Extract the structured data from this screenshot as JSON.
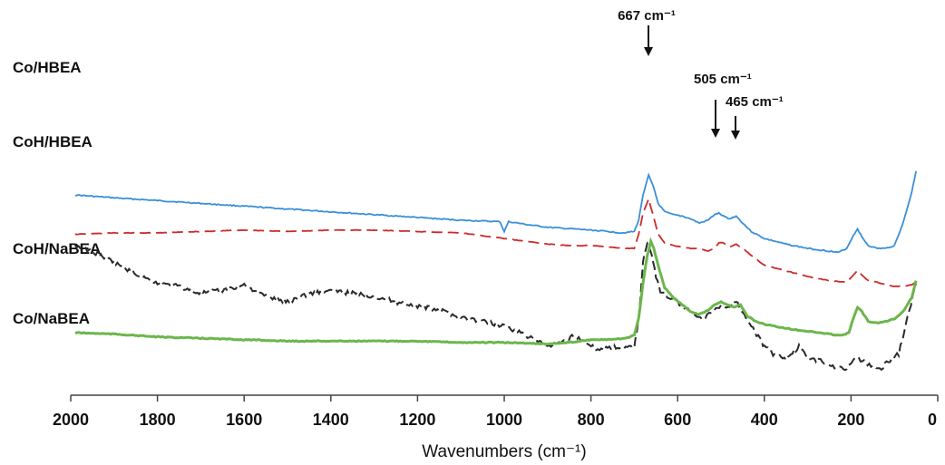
{
  "chart_data": {
    "type": "line",
    "title": "",
    "xlabel": "Wavenumbers (cm⁻¹)",
    "ylabel": "",
    "xlim": [
      2000,
      0
    ],
    "x_reversed": true,
    "xticks": [
      "2000",
      "1800",
      "1600",
      "1400",
      "1200",
      "1000",
      "800",
      "600",
      "400",
      "200",
      "0"
    ],
    "grid": false,
    "series": [
      {
        "name": "Co/HBEA",
        "color": "#3a8fd8",
        "style": "solid",
        "x": [
          1990,
          1900,
          1800,
          1700,
          1600,
          1500,
          1400,
          1300,
          1200,
          1100,
          1010,
          1000,
          990,
          950,
          900,
          850,
          800,
          760,
          730,
          700,
          690,
          680,
          667,
          655,
          645,
          630,
          610,
          590,
          570,
          550,
          530,
          515,
          505,
          495,
          480,
          465,
          450,
          430,
          400,
          350,
          300,
          250,
          230,
          210,
          195,
          185,
          175,
          160,
          140,
          120,
          100,
          80,
          60,
          50
        ],
        "y": [
          78,
          76,
          74,
          72,
          70,
          68,
          66,
          64,
          62,
          60,
          59,
          52,
          59,
          57,
          55,
          54,
          53,
          52,
          51,
          52,
          60,
          78,
          92,
          83,
          72,
          66,
          64,
          63,
          61,
          58,
          60,
          64,
          65,
          63,
          61,
          63,
          58,
          52,
          47,
          43,
          40,
          38,
          37,
          40,
          49,
          54,
          48,
          42,
          40,
          40,
          42,
          58,
          80,
          95
        ]
      },
      {
        "name": "CoH/HBEA",
        "color": "#cc2a2a",
        "style": "dashed",
        "x": [
          1990,
          1900,
          1800,
          1700,
          1600,
          1500,
          1400,
          1300,
          1200,
          1100,
          1000,
          900,
          850,
          800,
          760,
          720,
          700,
          690,
          680,
          667,
          655,
          645,
          630,
          610,
          590,
          570,
          550,
          530,
          515,
          505,
          495,
          480,
          465,
          450,
          430,
          400,
          350,
          300,
          250,
          210,
          195,
          185,
          175,
          160,
          140,
          120,
          100,
          80,
          60,
          50
        ],
        "y": [
          50,
          51,
          51,
          52,
          53,
          52,
          53,
          53,
          52,
          51,
          47,
          43,
          42,
          42,
          41,
          40,
          40,
          50,
          65,
          75,
          62,
          50,
          44,
          42,
          41,
          40,
          40,
          38,
          40,
          44,
          44,
          41,
          43,
          40,
          35,
          28,
          24,
          20,
          17,
          16,
          21,
          24,
          21,
          17,
          16,
          14,
          13,
          13,
          14,
          16
        ]
      },
      {
        "name": "CoH/NaBEA",
        "color": "#2a2a2a",
        "style": "dashed",
        "x": [
          1990,
          1950,
          1900,
          1850,
          1800,
          1750,
          1700,
          1650,
          1600,
          1550,
          1500,
          1450,
          1400,
          1350,
          1300,
          1250,
          1200,
          1150,
          1100,
          1050,
          1000,
          950,
          900,
          870,
          840,
          820,
          800,
          780,
          750,
          720,
          700,
          690,
          680,
          670,
          660,
          650,
          640,
          620,
          600,
          580,
          560,
          540,
          520,
          500,
          480,
          465,
          450,
          430,
          410,
          400,
          380,
          350,
          320,
          300,
          270,
          250,
          230,
          210,
          190,
          170,
          150,
          130,
          110,
          90,
          70,
          50
        ],
        "y": [
          42,
          38,
          30,
          22,
          15,
          13,
          8,
          10,
          14,
          6,
          2,
          8,
          10,
          8,
          6,
          2,
          -1,
          -4,
          -9,
          -12,
          -15,
          -22,
          -30,
          -28,
          -22,
          -25,
          -30,
          -32,
          -30,
          -31,
          -29,
          -10,
          30,
          45,
          35,
          20,
          10,
          5,
          2,
          -3,
          -7,
          -10,
          -5,
          0,
          -2,
          2,
          -5,
          -15,
          -25,
          -30,
          -35,
          -38,
          -30,
          -38,
          -40,
          -43,
          -45,
          -45,
          -38,
          -40,
          -45,
          -45,
          -40,
          -35,
          -10,
          15
        ]
      },
      {
        "name": "Co/NaBEA",
        "color": "#6cb64c",
        "style": "solid",
        "x": [
          1990,
          1900,
          1800,
          1700,
          1600,
          1500,
          1400,
          1300,
          1200,
          1100,
          1000,
          900,
          850,
          800,
          760,
          720,
          700,
          690,
          680,
          670,
          662,
          655,
          645,
          630,
          610,
          590,
          570,
          550,
          530,
          515,
          500,
          485,
          470,
          455,
          440,
          420,
          400,
          350,
          300,
          250,
          220,
          205,
          195,
          185,
          175,
          160,
          140,
          120,
          100,
          80,
          60,
          50
        ],
        "y": [
          -20,
          -21,
          -23,
          -24,
          -25,
          -26,
          -26,
          -26,
          -26,
          -27,
          -27,
          -28,
          -27,
          -25,
          -25,
          -24,
          -22,
          -10,
          15,
          35,
          45,
          40,
          28,
          12,
          5,
          0,
          -5,
          -7,
          -4,
          0,
          2,
          0,
          -2,
          0,
          -8,
          -12,
          -14,
          -17,
          -19,
          -21,
          -22,
          -20,
          -10,
          -2,
          -5,
          -12,
          -13,
          -12,
          -10,
          -5,
          5,
          17
        ]
      }
    ],
    "annotations": [
      {
        "text": "667 cm⁻¹",
        "x": 667,
        "y": 92
      },
      {
        "text": "505 cm⁻¹",
        "x": 505,
        "y": 65
      },
      {
        "text": "465 cm⁻¹",
        "x": 465,
        "y": 63
      }
    ]
  }
}
